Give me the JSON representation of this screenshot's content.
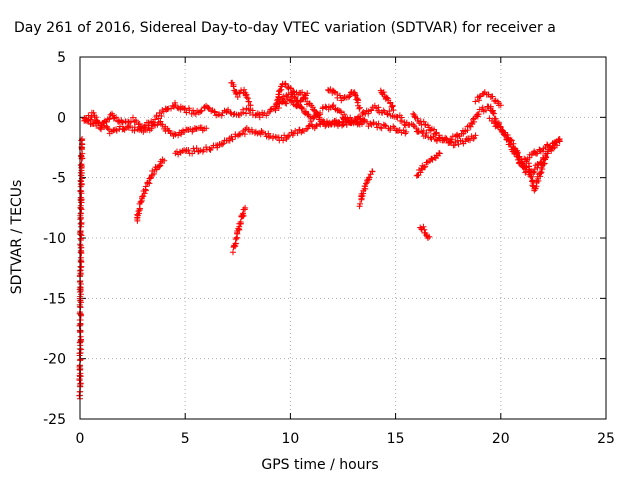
{
  "chart_data": {
    "type": "scatter",
    "title": "Day 261 of 2016, Sidereal Day-to-day VTEC variation (SDTVAR) for receiver a",
    "xlabel": "GPS time / hours",
    "ylabel": "SDTVAR / TECUs",
    "xlim": [
      0,
      25
    ],
    "ylim": [
      -25,
      5
    ],
    "xticks": [
      "0",
      "5",
      "10",
      "15",
      "20",
      "25"
    ],
    "yticks": [
      "5",
      "0",
      "-5",
      "-10",
      "-15",
      "-20",
      "-25"
    ],
    "grid": true,
    "marker": "+",
    "color": "#ff0000",
    "segments": [
      {
        "x": [
          0.0,
          0.05,
          0.1
        ],
        "y": [
          -23.3,
          -5.8,
          -1.8
        ]
      },
      {
        "x": [
          0.2,
          0.6,
          1.0,
          1.5,
          2.0,
          2.5,
          3.0,
          3.5,
          4.0,
          4.5,
          5.0,
          5.5,
          6.0,
          6.5,
          7.0,
          7.5,
          8.0,
          8.5,
          9.0,
          9.5,
          10.0,
          10.5,
          11.0,
          11.5,
          12.0,
          12.5,
          13.0,
          13.5,
          14.0,
          14.5,
          15.0,
          15.5,
          16.0,
          16.5,
          17.0,
          17.5,
          18.0,
          18.5,
          19.0,
          19.5,
          20.0,
          20.5,
          21.0,
          21.5,
          22.0,
          22.5,
          22.8
        ],
        "y": [
          -0.5,
          0.3,
          -0.8,
          0.2,
          -0.5,
          -0.2,
          -0.8,
          -0.3,
          0.5,
          1.0,
          0.6,
          0.4,
          0.8,
          0.2,
          0.5,
          0.3,
          0.6,
          0.1,
          0.4,
          1.0,
          1.5,
          0.8,
          -0.2,
          0.6,
          0.9,
          0.2,
          -0.4,
          0.3,
          0.8,
          0.4,
          0.2,
          -0.5,
          -1.0,
          -1.5,
          -1.8,
          -2.0,
          -1.5,
          -0.8,
          0.5,
          0.8,
          -1.0,
          -2.5,
          -4.0,
          -4.5,
          -3.5,
          -2.5,
          -2.0
        ]
      },
      {
        "x": [
          0.2,
          0.8,
          1.5,
          2.2,
          3.0,
          3.8,
          4.5,
          5.3,
          6.0
        ],
        "y": [
          -0.2,
          -0.6,
          -1.2,
          -0.8,
          -1.2,
          -0.5,
          -1.5,
          -1.0,
          -0.9
        ]
      },
      {
        "x": [
          4.5,
          6.5,
          8.0,
          9.5,
          11.0,
          12.5,
          14.0,
          15.5
        ],
        "y": [
          -3.0,
          -2.5,
          -1.0,
          -1.8,
          -0.8,
          -0.2,
          -0.6,
          -1.2
        ]
      },
      {
        "x": [
          9.5,
          10.5,
          11.5,
          12.5,
          13.5
        ],
        "y": [
          1.5,
          2.0,
          -0.3,
          -0.6,
          -0.2
        ]
      },
      {
        "x": [
          15.8,
          16.5,
          17.2,
          17.8,
          18.3,
          18.8
        ],
        "y": [
          0.2,
          -0.8,
          -1.8,
          -2.2,
          -2.0,
          -1.5
        ]
      },
      {
        "x": [
          19.5,
          20.0,
          20.5,
          20.8,
          21.2
        ],
        "y": [
          -0.2,
          -1.0,
          -2.0,
          -3.0,
          -4.5
        ]
      },
      {
        "x": [
          21.3,
          21.6,
          21.9,
          22.2
        ],
        "y": [
          -4.0,
          -6.0,
          -4.5,
          -3.0
        ]
      },
      {
        "x": [
          21.0,
          21.5,
          22.0,
          22.5,
          22.8
        ],
        "y": [
          -3.8,
          -3.0,
          -2.6,
          -2.2,
          -1.8
        ]
      },
      {
        "x": [
          2.7,
          2.9,
          3.2,
          3.5,
          3.8,
          4.0
        ],
        "y": [
          -8.5,
          -7.0,
          -5.5,
          -4.5,
          -3.9,
          -3.6
        ]
      },
      {
        "x": [
          7.3,
          7.5,
          7.7,
          7.85
        ],
        "y": [
          -11.0,
          -9.5,
          -8.2,
          -7.5
        ]
      },
      {
        "x": [
          13.3,
          13.5,
          13.7,
          13.9
        ],
        "y": [
          -7.2,
          -6.0,
          -5.0,
          -4.5
        ]
      },
      {
        "x": [
          16.0,
          16.3,
          16.6,
          16.9,
          17.1
        ],
        "y": [
          -4.8,
          -4.2,
          -3.6,
          -3.2,
          -3.0
        ]
      },
      {
        "x": [
          16.2,
          16.4,
          16.6
        ],
        "y": [
          -9.0,
          -9.4,
          -9.9
        ]
      },
      {
        "x": [
          7.2,
          7.5,
          7.8,
          8.1
        ],
        "y": [
          2.8,
          1.8,
          2.2,
          1.0
        ]
      },
      {
        "x": [
          18.8,
          19.4,
          20.0
        ],
        "y": [
          1.5,
          2.0,
          1.0
        ]
      },
      {
        "x": [
          11.8,
          12.5,
          13.0,
          13.3
        ],
        "y": [
          2.3,
          1.5,
          2.2,
          0.8
        ]
      },
      {
        "x": [
          14.3,
          14.6,
          14.9
        ],
        "y": [
          2.3,
          1.5,
          0.6
        ]
      },
      {
        "x": [
          9.3,
          9.6,
          10.0,
          10.4,
          10.8
        ],
        "y": [
          0.8,
          2.8,
          2.4,
          1.2,
          2.0
        ]
      }
    ]
  }
}
